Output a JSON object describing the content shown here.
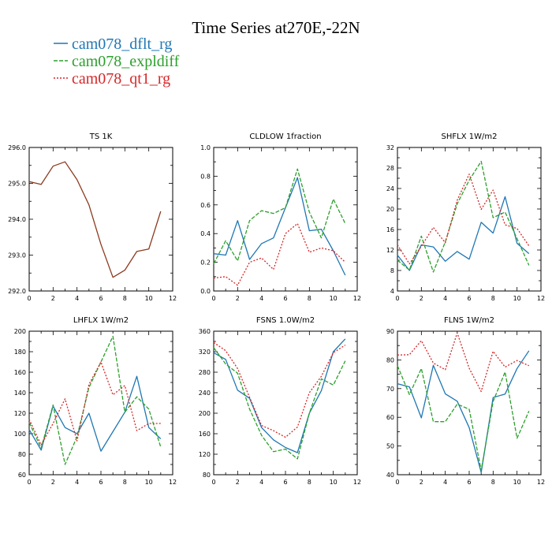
{
  "figure": {
    "title": "Time Series at270E,-22N"
  },
  "legend": [
    {
      "name": "cam078_dflt_rg",
      "color": "#1f77b4",
      "dash": "solid"
    },
    {
      "name": "cam078_expldiff",
      "color": "#2ca02c",
      "dash": "dashed"
    },
    {
      "name": "cam078_qt1_rg",
      "color": "#d62728",
      "dash": "dotted"
    }
  ],
  "chart_data": [
    {
      "type": "line",
      "title": "TS   1K",
      "xlim": [
        0,
        12
      ],
      "xticks": [
        "0",
        "2",
        "4",
        "6",
        "8",
        "10",
        "12"
      ],
      "ylim": [
        292.0,
        296.0
      ],
      "yticks": [
        "292.0",
        "293.0",
        "294.0",
        "295.0",
        "296.0"
      ],
      "x": [
        0,
        1,
        2,
        3,
        4,
        5,
        6,
        7,
        8,
        9,
        10,
        11
      ],
      "series": [
        {
          "name": "cam078_dflt_rg",
          "values": [
            295.05,
            294.97,
            295.48,
            295.6,
            295.1,
            294.4,
            293.3,
            292.38,
            292.58,
            293.1,
            293.17,
            294.22
          ]
        },
        {
          "name": "cam078_expldiff",
          "values": [
            295.05,
            294.97,
            295.48,
            295.6,
            295.1,
            294.4,
            293.3,
            292.38,
            292.58,
            293.1,
            293.17,
            294.22
          ]
        },
        {
          "name": "cam078_qt1_rg",
          "values": [
            295.05,
            294.97,
            295.48,
            295.6,
            295.1,
            294.4,
            293.3,
            292.38,
            292.58,
            293.1,
            293.17,
            294.22
          ]
        }
      ]
    },
    {
      "type": "line",
      "title": "CLDLOW   1fraction",
      "xlim": [
        0,
        12
      ],
      "xticks": [
        "0",
        "2",
        "4",
        "6",
        "8",
        "10",
        "12"
      ],
      "ylim": [
        0.0,
        1.0
      ],
      "yticks": [
        "0.0",
        "0.2",
        "0.4",
        "0.6",
        "0.8",
        "1.0"
      ],
      "x": [
        0,
        1,
        2,
        3,
        4,
        5,
        6,
        7,
        8,
        9,
        10,
        11
      ],
      "series": [
        {
          "name": "cam078_dflt_rg",
          "values": [
            0.26,
            0.25,
            0.49,
            0.22,
            0.33,
            0.37,
            0.58,
            0.79,
            0.42,
            0.43,
            0.28,
            0.11
          ]
        },
        {
          "name": "cam078_expldiff",
          "values": [
            0.19,
            0.35,
            0.21,
            0.49,
            0.56,
            0.54,
            0.58,
            0.85,
            0.55,
            0.37,
            0.64,
            0.47
          ]
        },
        {
          "name": "cam078_qt1_rg",
          "values": [
            0.09,
            0.1,
            0.04,
            0.2,
            0.23,
            0.15,
            0.4,
            0.47,
            0.27,
            0.3,
            0.28,
            0.2
          ]
        }
      ]
    },
    {
      "type": "line",
      "title": "SHFLX   1W/m2",
      "xlim": [
        0,
        12
      ],
      "xticks": [
        "0",
        "2",
        "4",
        "6",
        "8",
        "10",
        "12"
      ],
      "ylim": [
        4,
        32
      ],
      "yticks": [
        "4",
        "8",
        "12",
        "16",
        "20",
        "24",
        "28",
        "32"
      ],
      "x": [
        0,
        1,
        2,
        3,
        4,
        5,
        6,
        7,
        8,
        9,
        10,
        11
      ],
      "series": [
        {
          "name": "cam078_dflt_rg",
          "values": [
            11.0,
            8.0,
            13.0,
            12.6,
            9.8,
            11.7,
            10.2,
            17.4,
            15.3,
            22.4,
            13.3,
            11.3
          ]
        },
        {
          "name": "cam078_expldiff",
          "values": [
            10.0,
            8.1,
            14.7,
            7.7,
            13.6,
            21.0,
            25.6,
            29.3,
            18.3,
            19.4,
            14.2,
            9.0
          ]
        },
        {
          "name": "cam078_qt1_rg",
          "values": [
            13.0,
            9.3,
            12.7,
            16.4,
            13.4,
            21.7,
            26.8,
            19.9,
            23.7,
            16.9,
            16.2,
            12.8
          ]
        }
      ]
    },
    {
      "type": "line",
      "title": "LHFLX   1W/m2",
      "xlim": [
        0,
        12
      ],
      "xticks": [
        "0",
        "2",
        "4",
        "6",
        "8",
        "10",
        "12"
      ],
      "ylim": [
        60,
        200
      ],
      "yticks": [
        "60",
        "80",
        "100",
        "120",
        "140",
        "160",
        "180",
        "200"
      ],
      "x": [
        0,
        1,
        2,
        3,
        4,
        5,
        6,
        7,
        8,
        9,
        10,
        11
      ],
      "series": [
        {
          "name": "cam078_dflt_rg",
          "values": [
            104,
            84,
            127,
            106,
            100,
            120,
            83,
            102,
            121,
            156,
            106,
            95
          ]
        },
        {
          "name": "cam078_expldiff",
          "values": [
            111,
            86,
            128,
            70,
            97,
            145,
            170,
            195,
            121,
            136,
            124,
            87
          ]
        },
        {
          "name": "cam078_qt1_rg",
          "values": [
            114,
            89,
            110,
            134,
            93,
            148,
            170,
            138,
            147,
            103,
            110,
            110
          ]
        }
      ]
    },
    {
      "type": "line",
      "title": "FSNS   1.0W/m2",
      "xlim": [
        0,
        12
      ],
      "xticks": [
        "0",
        "2",
        "4",
        "6",
        "8",
        "10",
        "12"
      ],
      "ylim": [
        80,
        360
      ],
      "yticks": [
        "80",
        "120",
        "160",
        "200",
        "240",
        "280",
        "320",
        "360"
      ],
      "x": [
        0,
        1,
        2,
        3,
        4,
        5,
        6,
        7,
        8,
        9,
        10,
        11
      ],
      "series": [
        {
          "name": "cam078_dflt_rg",
          "values": [
            318,
            305,
            245,
            229,
            172,
            148,
            133,
            123,
            200,
            244,
            320,
            345
          ]
        },
        {
          "name": "cam078_expldiff",
          "values": [
            328,
            296,
            278,
            208,
            157,
            125,
            130,
            111,
            200,
            267,
            255,
            302
          ]
        },
        {
          "name": "cam078_qt1_rg",
          "values": [
            338,
            322,
            287,
            231,
            176,
            166,
            153,
            173,
            240,
            272,
            318,
            333
          ]
        }
      ]
    },
    {
      "type": "line",
      "title": "FLNS   1W/m2",
      "xlim": [
        0,
        12
      ],
      "xticks": [
        "0",
        "2",
        "4",
        "6",
        "8",
        "10",
        "12"
      ],
      "ylim": [
        40,
        90
      ],
      "yticks": [
        "40",
        "50",
        "60",
        "70",
        "80",
        "90"
      ],
      "x": [
        0,
        1,
        2,
        3,
        4,
        5,
        6,
        7,
        8,
        9,
        10,
        11
      ],
      "series": [
        {
          "name": "cam078_dflt_rg",
          "values": [
            71.7,
            70.6,
            59.8,
            78.1,
            68.2,
            65.6,
            56.4,
            40.8,
            66.9,
            68.1,
            77.0,
            83.2
          ]
        },
        {
          "name": "cam078_expldiff",
          "values": [
            78.0,
            67.9,
            77.0,
            58.5,
            58.5,
            64.6,
            62.8,
            41.5,
            65.5,
            75.8,
            52.7,
            62.2
          ]
        },
        {
          "name": "cam078_qt1_rg",
          "values": [
            81.7,
            81.8,
            86.7,
            78.9,
            76.6,
            89.4,
            77.1,
            69.0,
            83.0,
            77.5,
            79.8,
            78.0
          ]
        }
      ]
    }
  ]
}
